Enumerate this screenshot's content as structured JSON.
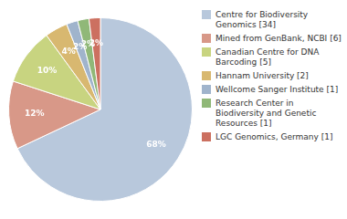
{
  "chart_data": {
    "type": "pie",
    "categories": [
      "Centre for Biodiversity\nGenomics [34]",
      "Mined from GenBank, NCBI [6]",
      "Canadian Centre for DNA\nBarcoding [5]",
      "Hannam University [2]",
      "Wellcome Sanger Institute [1]",
      "Research Center in\nBiodiversity and Genetic\nResources [1]",
      "LGC Genomics, Germany [1]"
    ],
    "values": [
      68,
      12,
      10,
      4,
      2,
      2,
      2
    ],
    "value_labels": [
      "68%",
      "12%",
      "10%",
      "4%",
      "2%",
      "2%",
      "2%"
    ],
    "colors": [
      "#b8c8dc",
      "#d89888",
      "#c8d480",
      "#d8b870",
      "#a0b4cc",
      "#90b878",
      "#cc7060"
    ],
    "legend": "right",
    "data_labels": true
  }
}
